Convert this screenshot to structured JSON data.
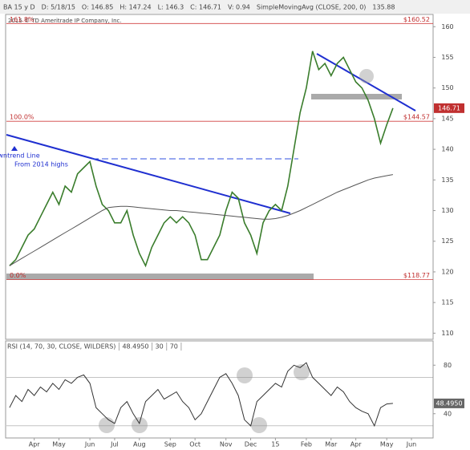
{
  "header": [
    "BA 15 y D",
    "D: 5/18/15",
    "O: 146.85",
    "H: 147.24",
    "L: 146.3",
    "C: 146.71",
    "V: 0.94",
    "SimpleMovingAvg (CLOSE, 200, 0)",
    "135.88"
  ],
  "copyright": "2015 © TD Ameritrade IP Company, Inc.",
  "annotation": [
    "Downtrend Line",
    "From 2014 highs"
  ],
  "chart_data": [
    {
      "type": "line",
      "ylim": [
        109,
        162
      ],
      "yticks": [
        110,
        115,
        120,
        125,
        130,
        135,
        140,
        145,
        150,
        155,
        160
      ],
      "fib_levels": [
        {
          "label": "161.8%",
          "value": 160.52,
          "value_label": "$160.52"
        },
        {
          "label": "100.0%",
          "value": 144.57,
          "value_label": "$144.57"
        },
        {
          "label": "0.0%",
          "value": 118.77,
          "value_label": "$118.77"
        }
      ],
      "series": [
        {
          "color": "#3a7d2c",
          "values": [
            121,
            122,
            124,
            126,
            127,
            129,
            131,
            133,
            131,
            134,
            133,
            136,
            137,
            138,
            134,
            131,
            130,
            128,
            128,
            130,
            126,
            123,
            121,
            124,
            126,
            128,
            129,
            128,
            129,
            128,
            126,
            122,
            122,
            124,
            126,
            130,
            133,
            132,
            128,
            126,
            123,
            128,
            130,
            131,
            130,
            134,
            140,
            146,
            150,
            156,
            153,
            154,
            152,
            154,
            155,
            153,
            151,
            150,
            148,
            145,
            141,
            144,
            146.71,
            null,
            null,
            null,
            null,
            null,
            null
          ]
        },
        {
          "color": "#555555",
          "values": [
            121,
            121.6,
            122.2,
            122.8,
            123.4,
            124,
            124.6,
            125.2,
            125.8,
            126.4,
            127,
            127.6,
            128.2,
            128.8,
            129.4,
            130,
            130.5,
            130.6,
            130.7,
            130.7,
            130.6,
            130.5,
            130.4,
            130.3,
            130.2,
            130.1,
            130,
            130,
            129.9,
            129.8,
            129.7,
            129.6,
            129.5,
            129.4,
            129.3,
            129.2,
            129.1,
            129,
            128.9,
            128.8,
            128.7,
            128.6,
            128.6,
            128.7,
            128.9,
            129.2,
            129.6,
            130,
            130.5,
            131,
            131.5,
            132,
            132.5,
            133,
            133.4,
            133.8,
            134.2,
            134.6,
            135,
            135.3,
            135.5,
            135.7,
            135.88,
            null,
            null,
            null,
            null,
            null,
            null
          ]
        }
      ]
    },
    {
      "type": "line",
      "title": [
        "RSI (14, 70, 30, CLOSE, WILDERS)",
        "48.4950",
        "30",
        "70"
      ],
      "ylim": [
        20,
        100
      ],
      "yticks": [
        40,
        80
      ],
      "ref_lines": [
        70,
        30
      ],
      "current_label": "48.4950",
      "categories": [
        null,
        null,
        null,
        null,
        "Apr",
        null,
        null,
        null,
        "May",
        null,
        null,
        null,
        null,
        "Jun",
        null,
        null,
        null,
        "Jul",
        null,
        null,
        null,
        "Aug",
        null,
        null,
        null,
        null,
        "Sep",
        null,
        null,
        null,
        "Oct",
        null,
        null,
        null,
        null,
        "Nov",
        null,
        null,
        null,
        "Dec",
        null,
        null,
        null,
        "15",
        null,
        null,
        null,
        null,
        "Feb",
        null,
        null,
        null,
        "Mar",
        null,
        null,
        null,
        "Apr",
        null,
        null,
        null,
        null,
        "May",
        null,
        null,
        null,
        "Jun",
        null,
        null,
        null
      ],
      "series": [
        {
          "color": "#333333",
          "values": [
            45,
            55,
            50,
            60,
            55,
            62,
            58,
            65,
            60,
            68,
            65,
            70,
            72,
            65,
            45,
            40,
            35,
            32,
            45,
            50,
            40,
            32,
            50,
            55,
            60,
            52,
            55,
            58,
            50,
            45,
            35,
            40,
            50,
            60,
            70,
            73,
            65,
            55,
            35,
            30,
            50,
            55,
            60,
            65,
            62,
            75,
            80,
            78,
            82,
            70,
            65,
            60,
            55,
            62,
            58,
            50,
            45,
            42,
            40,
            30,
            45,
            48,
            48.495,
            null,
            null,
            null,
            null,
            null,
            null
          ]
        }
      ]
    }
  ]
}
